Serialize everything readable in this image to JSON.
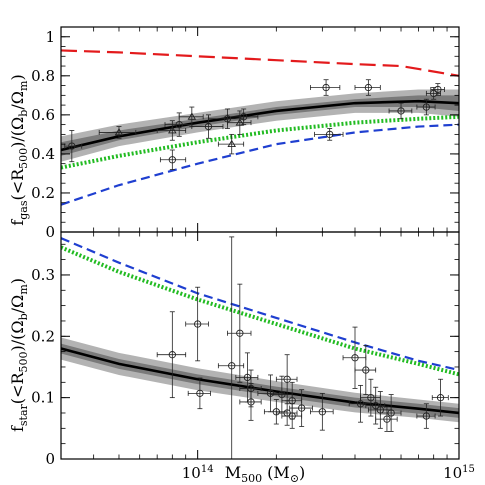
{
  "chart_data": [
    {
      "type": "line",
      "panel": "top",
      "ylabel_main": "f",
      "ylabel_sub": "gas",
      "ylabel_rest": "(<R",
      "ylabel_sub2": "500",
      "ylabel_rest2": ")/(Ω",
      "ylabel_sub3": "b",
      "ylabel_rest3": "/Ω",
      "ylabel_sub4": "m",
      "ylabel_rest4": ")",
      "xscale": "log",
      "xlim": [
        30000000000000.0,
        1000000000000000.0
      ],
      "ylim": [
        0,
        1.05
      ],
      "yticks": [
        0,
        0.2,
        0.4,
        0.6,
        0.8,
        1
      ],
      "ytick_labels": [
        "0",
        "0.2",
        "0.4",
        "0.6",
        "0.8",
        "1"
      ],
      "series": [
        {
          "style": "red-dashed",
          "color": "#e31a1c",
          "x": [
            30000000000000.0,
            50000000000000.0,
            100000000000000.0,
            200000000000000.0,
            400000000000000.0,
            600000000000000.0,
            1000000000000000.0
          ],
          "y": [
            0.93,
            0.92,
            0.9,
            0.88,
            0.86,
            0.85,
            0.8
          ]
        },
        {
          "style": "green-dotted",
          "color": "#22bb22",
          "x": [
            30000000000000.0,
            50000000000000.0,
            100000000000000.0,
            200000000000000.0,
            400000000000000.0,
            700000000000000.0,
            1000000000000000.0
          ],
          "y": [
            0.33,
            0.39,
            0.46,
            0.52,
            0.56,
            0.58,
            0.59
          ]
        },
        {
          "style": "blue-dashed",
          "color": "#1f3fd0",
          "x": [
            30000000000000.0,
            50000000000000.0,
            100000000000000.0,
            200000000000000.0,
            400000000000000.0,
            700000000000000.0,
            1000000000000000.0
          ],
          "y": [
            0.14,
            0.24,
            0.35,
            0.45,
            0.51,
            0.54,
            0.55
          ]
        },
        {
          "style": "black-solid",
          "color": "#000000",
          "x": [
            30000000000000.0,
            50000000000000.0,
            100000000000000.0,
            200000000000000.0,
            400000000000000.0,
            700000000000000.0,
            1000000000000000.0
          ],
          "y": [
            0.42,
            0.49,
            0.56,
            0.62,
            0.66,
            0.67,
            0.66
          ],
          "band_inner": [
            [
              0.39,
              0.46
            ],
            [
              0.47,
              0.52
            ],
            [
              0.54,
              0.58
            ],
            [
              0.6,
              0.64
            ],
            [
              0.64,
              0.68
            ],
            [
              0.64,
              0.7
            ],
            [
              0.62,
              0.7
            ]
          ],
          "band_outer": [
            [
              0.36,
              0.49
            ],
            [
              0.44,
              0.55
            ],
            [
              0.51,
              0.61
            ],
            [
              0.57,
              0.67
            ],
            [
              0.61,
              0.71
            ],
            [
              0.61,
              0.73
            ],
            [
              0.59,
              0.73
            ]
          ]
        }
      ],
      "points_circle": [
        {
          "x": 33000000000000.0,
          "y": 0.44,
          "xerr": [
            2000000000000.0,
            3000000000000.0
          ],
          "yerr": 0.08
        },
        {
          "x": 80000000000000.0,
          "y": 0.37,
          "xerr": [
            8000000000000.0,
            10000000000000.0
          ],
          "yerr": 0.05
        },
        {
          "x": 85000000000000.0,
          "y": 0.55,
          "xerr": [
            10000000000000.0,
            10000000000000.0
          ],
          "yerr": 0.06
        },
        {
          "x": 110000000000000.0,
          "y": 0.54,
          "xerr": [
            15000000000000.0,
            15000000000000.0
          ],
          "yerr": 0.06
        },
        {
          "x": 130000000000000.0,
          "y": 0.58,
          "xerr": [
            20000000000000.0,
            20000000000000.0
          ],
          "yerr": 0.05
        },
        {
          "x": 150000000000000.0,
          "y": 0.59,
          "xerr": [
            20000000000000.0,
            20000000000000.0
          ],
          "yerr": 0.04
        },
        {
          "x": 310000000000000.0,
          "y": 0.74,
          "xerr": [
            40000000000000.0,
            40000000000000.0
          ],
          "yerr": 0.04
        },
        {
          "x": 320000000000000.0,
          "y": 0.5,
          "xerr": [
            40000000000000.0,
            40000000000000.0
          ],
          "yerr": 0.03
        },
        {
          "x": 450000000000000.0,
          "y": 0.74,
          "xerr": [
            50000000000000.0,
            50000000000000.0
          ],
          "yerr": 0.04
        },
        {
          "x": 600000000000000.0,
          "y": 0.62,
          "xerr": [
            60000000000000.0,
            60000000000000.0
          ],
          "yerr": 0.04
        },
        {
          "x": 750000000000000.0,
          "y": 0.64,
          "xerr": [
            60000000000000.0,
            60000000000000.0
          ],
          "yerr": 0.04
        },
        {
          "x": 800000000000000.0,
          "y": 0.71,
          "xerr": [
            50000000000000.0,
            50000000000000.0
          ],
          "yerr": 0.03
        },
        {
          "x": 830000000000000.0,
          "y": 0.73,
          "xerr": [
            50000000000000.0,
            50000000000000.0
          ],
          "yerr": 0.03
        }
      ],
      "points_triangle": [
        {
          "x": 50000000000000.0,
          "y": 0.51,
          "xerr": [
            8000000000000.0,
            8000000000000.0
          ],
          "yerr": 0.03
        },
        {
          "x": 80000000000000.0,
          "y": 0.52,
          "xerr": [
            10000000000000.0,
            10000000000000.0
          ],
          "yerr": 0.05
        },
        {
          "x": 95000000000000.0,
          "y": 0.59,
          "xerr": [
            10000000000000.0,
            10000000000000.0
          ],
          "yerr": 0.05
        },
        {
          "x": 135000000000000.0,
          "y": 0.45,
          "xerr": [
            15000000000000.0,
            15000000000000.0
          ],
          "yerr": 0.05
        },
        {
          "x": 145000000000000.0,
          "y": 0.56,
          "xerr": [
            15000000000000.0,
            15000000000000.0
          ],
          "yerr": 0.06
        }
      ]
    },
    {
      "type": "line",
      "panel": "bottom",
      "ylabel_main": "f",
      "ylabel_sub": "star",
      "ylabel_rest": "(<R",
      "ylabel_sub2": "500",
      "ylabel_rest2": ")/(Ω",
      "ylabel_sub3": "b",
      "ylabel_rest3": "/Ω",
      "ylabel_sub4": "m",
      "ylabel_rest4": ")",
      "xlabel_main": "M",
      "xlabel_sub": "500",
      "xlabel_rest": " (M",
      "xlabel_sub2": "⊙",
      "xlabel_rest2": ")",
      "xscale": "log",
      "xlim": [
        30000000000000.0,
        1000000000000000.0
      ],
      "ylim": [
        0,
        0.37
      ],
      "yticks": [
        0,
        0.1,
        0.2,
        0.3
      ],
      "ytick_labels": [
        "0",
        "0.1",
        "0.2",
        "0.3"
      ],
      "xtick_labels": [
        {
          "value": 100000000000000.0,
          "base": "10",
          "exp": "14"
        },
        {
          "value": 1000000000000000.0,
          "base": "10",
          "exp": "15"
        }
      ],
      "series": [
        {
          "style": "blue-dashed",
          "color": "#1f3fd0",
          "x": [
            30000000000000.0,
            50000000000000.0,
            100000000000000.0,
            200000000000000.0,
            400000000000000.0,
            700000000000000.0,
            1000000000000000.0
          ],
          "y": [
            0.36,
            0.32,
            0.27,
            0.23,
            0.19,
            0.16,
            0.145
          ]
        },
        {
          "style": "green-dotted",
          "color": "#22bb22",
          "x": [
            30000000000000.0,
            50000000000000.0,
            100000000000000.0,
            200000000000000.0,
            400000000000000.0,
            700000000000000.0,
            1000000000000000.0
          ],
          "y": [
            0.345,
            0.305,
            0.26,
            0.22,
            0.18,
            0.155,
            0.138
          ]
        },
        {
          "style": "black-solid",
          "color": "#000000",
          "x": [
            30000000000000.0,
            50000000000000.0,
            100000000000000.0,
            200000000000000.0,
            400000000000000.0,
            700000000000000.0,
            1000000000000000.0
          ],
          "y": [
            0.18,
            0.155,
            0.13,
            0.11,
            0.092,
            0.082,
            0.075
          ],
          "band_inner": [
            [
              0.172,
              0.188
            ],
            [
              0.147,
              0.163
            ],
            [
              0.122,
              0.138
            ],
            [
              0.102,
              0.118
            ],
            [
              0.084,
              0.1
            ],
            [
              0.074,
              0.09
            ],
            [
              0.067,
              0.083
            ]
          ],
          "band_outer": [
            [
              0.162,
              0.198
            ],
            [
              0.137,
              0.173
            ],
            [
              0.112,
              0.148
            ],
            [
              0.093,
              0.127
            ],
            [
              0.076,
              0.108
            ],
            [
              0.067,
              0.097
            ],
            [
              0.06,
              0.09
            ]
          ]
        }
      ],
      "points_circle": [
        {
          "x": 80000000000000.0,
          "y": 0.17,
          "xerr": [
            10000000000000.0,
            10000000000000.0
          ],
          "yerr": 0.07
        },
        {
          "x": 100000000000000.0,
          "y": 0.22,
          "xerr": [
            10000000000000.0,
            10000000000000.0
          ],
          "yerr": 0.06
        },
        {
          "x": 102000000000000.0,
          "y": 0.107,
          "xerr": [
            10000000000000.0,
            10000000000000.0
          ],
          "yerr": 0.025
        },
        {
          "x": 135000000000000.0,
          "y": 0.152,
          "xerr": [
            15000000000000.0,
            15000000000000.0
          ],
          "yerr": 0.21
        },
        {
          "x": 145000000000000.0,
          "y": 0.205,
          "xerr": [
            15000000000000.0,
            15000000000000.0
          ],
          "yerr": 0.08
        },
        {
          "x": 155000000000000.0,
          "y": 0.133,
          "xerr": [
            15000000000000.0,
            15000000000000.0
          ],
          "yerr": 0.04
        },
        {
          "x": 160000000000000.0,
          "y": 0.115,
          "xerr": [
            15000000000000.0,
            15000000000000.0
          ],
          "yerr": 0.03
        },
        {
          "x": 160000000000000.0,
          "y": 0.093,
          "xerr": [
            15000000000000.0,
            15000000000000.0
          ],
          "yerr": 0.03
        },
        {
          "x": 190000000000000.0,
          "y": 0.107,
          "xerr": [
            20000000000000.0,
            20000000000000.0
          ],
          "yerr": 0.03
        },
        {
          "x": 200000000000000.0,
          "y": 0.077,
          "xerr": [
            20000000000000.0,
            20000000000000.0
          ],
          "yerr": 0.02
        },
        {
          "x": 210000000000000.0,
          "y": 0.105,
          "xerr": [
            20000000000000.0,
            20000000000000.0
          ],
          "yerr": 0.03
        },
        {
          "x": 220000000000000.0,
          "y": 0.13,
          "xerr": [
            20000000000000.0,
            20000000000000.0
          ],
          "yerr": 0.04
        },
        {
          "x": 220000000000000.0,
          "y": 0.075,
          "xerr": [
            20000000000000.0,
            20000000000000.0
          ],
          "yerr": 0.02
        },
        {
          "x": 230000000000000.0,
          "y": 0.095,
          "xerr": [
            20000000000000.0,
            20000000000000.0
          ],
          "yerr": 0.03
        },
        {
          "x": 230000000000000.0,
          "y": 0.07,
          "xerr": [
            20000000000000.0,
            20000000000000.0
          ],
          "yerr": 0.02
        },
        {
          "x": 250000000000000.0,
          "y": 0.083,
          "xerr": [
            25000000000000.0,
            25000000000000.0
          ],
          "yerr": 0.03
        },
        {
          "x": 300000000000000.0,
          "y": 0.077,
          "xerr": [
            30000000000000.0,
            30000000000000.0
          ],
          "yerr": 0.03
        },
        {
          "x": 400000000000000.0,
          "y": 0.165,
          "xerr": [
            40000000000000.0,
            40000000000000.0
          ],
          "yerr": 0.05
        },
        {
          "x": 420000000000000.0,
          "y": 0.09,
          "xerr": [
            40000000000000.0,
            40000000000000.0
          ],
          "yerr": 0.03
        },
        {
          "x": 440000000000000.0,
          "y": 0.145,
          "xerr": [
            40000000000000.0,
            40000000000000.0
          ],
          "yerr": 0.04
        },
        {
          "x": 460000000000000.0,
          "y": 0.1,
          "xerr": [
            40000000000000.0,
            40000000000000.0
          ],
          "yerr": 0.03
        },
        {
          "x": 480000000000000.0,
          "y": 0.087,
          "xerr": [
            40000000000000.0,
            40000000000000.0
          ],
          "yerr": 0.03
        },
        {
          "x": 500000000000000.0,
          "y": 0.08,
          "xerr": [
            50000000000000.0,
            50000000000000.0
          ],
          "yerr": 0.03
        },
        {
          "x": 530000000000000.0,
          "y": 0.065,
          "xerr": [
            50000000000000.0,
            50000000000000.0
          ],
          "yerr": 0.02
        },
        {
          "x": 550000000000000.0,
          "y": 0.075,
          "xerr": [
            50000000000000.0,
            50000000000000.0
          ],
          "yerr": 0.03
        },
        {
          "x": 750000000000000.0,
          "y": 0.07,
          "xerr": [
            60000000000000.0,
            60000000000000.0
          ],
          "yerr": 0.02
        },
        {
          "x": 850000000000000.0,
          "y": 0.1,
          "xerr": [
            60000000000000.0,
            60000000000000.0
          ],
          "yerr": 0.03
        }
      ],
      "points_triangle": []
    }
  ]
}
